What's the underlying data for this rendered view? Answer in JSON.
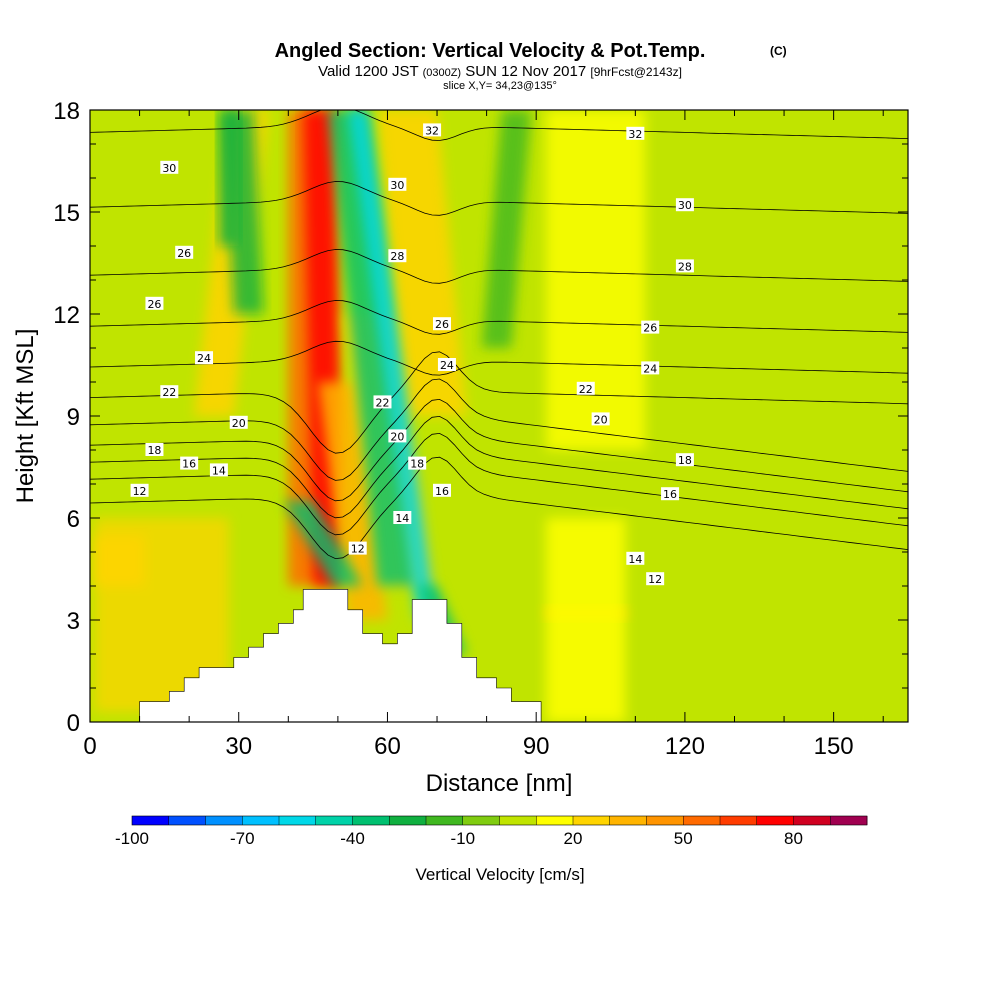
{
  "chart_data": {
    "type": "heatmap",
    "title": "Angled Section: Vertical Velocity & Pot.Temp.",
    "title_mark": "(C)",
    "subtitle": {
      "prefix": "Valid 1200 JST",
      "utc": "(0300Z)",
      "date": "SUN 12 Nov 2017",
      "run": "[9hrFcst@2143z]"
    },
    "slice_text": "slice X,Y= 34,23@135°",
    "xlabel": "Distance [nm]",
    "ylabel": "Height [Kft MSL]",
    "xlim": [
      0,
      165
    ],
    "ylim": [
      0,
      18
    ],
    "x_ticks": [
      {
        "value": 0,
        "label": "0"
      },
      {
        "value": 30,
        "label": "30"
      },
      {
        "value": 60,
        "label": "60"
      },
      {
        "value": 90,
        "label": "90"
      },
      {
        "value": 120,
        "label": "120"
      },
      {
        "value": 150,
        "label": "150"
      }
    ],
    "y_ticks": [
      {
        "value": 0,
        "label": "0"
      },
      {
        "value": 3,
        "label": "3"
      },
      {
        "value": 6,
        "label": "6"
      },
      {
        "value": 9,
        "label": "9"
      },
      {
        "value": 12,
        "label": "12"
      },
      {
        "value": 15,
        "label": "15"
      },
      {
        "value": 18,
        "label": "18"
      }
    ],
    "colorbar": {
      "label": "Vertical Velocity [cm/s]",
      "min": -100,
      "max": 100,
      "step": 10,
      "colors": [
        "#0000ff",
        "#0050ff",
        "#0090ff",
        "#00c0ff",
        "#00d8e8",
        "#00d2a8",
        "#00c070",
        "#10b040",
        "#40b820",
        "#80cc10",
        "#c0e400",
        "#ffff00",
        "#ffd400",
        "#ffb400",
        "#ff9400",
        "#ff6a00",
        "#ff3c00",
        "#ff0000",
        "#d00020",
        "#a00050",
        "#700080"
      ],
      "labels": [
        {
          "value": -100,
          "label": "-100"
        },
        {
          "value": -70,
          "label": "-70"
        },
        {
          "value": -40,
          "label": "-40"
        },
        {
          "value": -10,
          "label": "-10"
        },
        {
          "value": 20,
          "label": "20"
        },
        {
          "value": 50,
          "label": "50"
        },
        {
          "value": 80,
          "label": "80"
        }
      ]
    },
    "terrain": [
      [
        0,
        0
      ],
      [
        10,
        0
      ],
      [
        10,
        0.6
      ],
      [
        16,
        0.6
      ],
      [
        16,
        0.9
      ],
      [
        19,
        0.9
      ],
      [
        19,
        1.3
      ],
      [
        22,
        1.3
      ],
      [
        22,
        1.6
      ],
      [
        29,
        1.6
      ],
      [
        29,
        1.9
      ],
      [
        32,
        1.9
      ],
      [
        32,
        2.2
      ],
      [
        35,
        2.2
      ],
      [
        35,
        2.6
      ],
      [
        38,
        2.6
      ],
      [
        38,
        2.9
      ],
      [
        41,
        2.9
      ],
      [
        41,
        3.3
      ],
      [
        43,
        3.3
      ],
      [
        43,
        3.9
      ],
      [
        48,
        3.9
      ],
      [
        48,
        3.9
      ],
      [
        52,
        3.9
      ],
      [
        52,
        3.3
      ],
      [
        55,
        3.3
      ],
      [
        55,
        2.6
      ],
      [
        59,
        2.6
      ],
      [
        59,
        2.3
      ],
      [
        62,
        2.3
      ],
      [
        62,
        2.6
      ],
      [
        65,
        2.6
      ],
      [
        65,
        3.6
      ],
      [
        72,
        3.6
      ],
      [
        72,
        2.9
      ],
      [
        75,
        2.9
      ],
      [
        75,
        1.9
      ],
      [
        78,
        1.9
      ],
      [
        78,
        1.3
      ],
      [
        82,
        1.3
      ],
      [
        82,
        1.0
      ],
      [
        85,
        1.0
      ],
      [
        85,
        0.6
      ],
      [
        91,
        0.6
      ],
      [
        91,
        0
      ]
    ],
    "theta_contours": [
      {
        "label": "12",
        "base": 6.6
      },
      {
        "label": "14",
        "base": 7.3
      },
      {
        "label": "16",
        "base": 7.8
      },
      {
        "label": "18",
        "base": 8.3
      },
      {
        "label": "20",
        "base": 8.9
      },
      {
        "label": "22",
        "base": 9.7
      },
      {
        "label": "24",
        "base": 10.6
      },
      {
        "label": "26",
        "base": 11.8
      },
      {
        "label": "28",
        "base": 13.3
      },
      {
        "label": "30",
        "base": 15.3
      },
      {
        "label": "32",
        "base": 17.5
      }
    ],
    "contour_labels": [
      {
        "label": "12",
        "x": 10,
        "y": 6.8
      },
      {
        "label": "16",
        "x": 20,
        "y": 7.6
      },
      {
        "label": "14",
        "x": 26,
        "y": 7.4
      },
      {
        "label": "18",
        "x": 13,
        "y": 8.0
      },
      {
        "label": "20",
        "x": 30,
        "y": 8.8
      },
      {
        "label": "22",
        "x": 16,
        "y": 9.7
      },
      {
        "label": "24",
        "x": 23,
        "y": 10.7
      },
      {
        "label": "26",
        "x": 13,
        "y": 12.3
      },
      {
        "label": "26",
        "x": 19,
        "y": 13.8
      },
      {
        "label": "30",
        "x": 16,
        "y": 16.3
      },
      {
        "label": "12",
        "x": 54,
        "y": 5.1
      },
      {
        "label": "14",
        "x": 63,
        "y": 6.0
      },
      {
        "label": "16",
        "x": 71,
        "y": 6.8
      },
      {
        "label": "18",
        "x": 66,
        "y": 7.6
      },
      {
        "label": "20",
        "x": 62,
        "y": 8.4
      },
      {
        "label": "22",
        "x": 59,
        "y": 9.4
      },
      {
        "label": "24",
        "x": 72,
        "y": 10.5
      },
      {
        "label": "26",
        "x": 71,
        "y": 11.7
      },
      {
        "label": "28",
        "x": 62,
        "y": 13.7
      },
      {
        "label": "30",
        "x": 62,
        "y": 15.8
      },
      {
        "label": "32",
        "x": 69,
        "y": 17.4
      },
      {
        "label": "14",
        "x": 110,
        "y": 4.8
      },
      {
        "label": "12",
        "x": 114,
        "y": 4.2
      },
      {
        "label": "16",
        "x": 117,
        "y": 6.7
      },
      {
        "label": "18",
        "x": 120,
        "y": 7.7
      },
      {
        "label": "20",
        "x": 103,
        "y": 8.9
      },
      {
        "label": "22",
        "x": 100,
        "y": 9.8
      },
      {
        "label": "24",
        "x": 113,
        "y": 10.4
      },
      {
        "label": "26",
        "x": 113,
        "y": 11.6
      },
      {
        "label": "28",
        "x": 120,
        "y": 13.4
      },
      {
        "label": "30",
        "x": 120,
        "y": 15.2
      },
      {
        "label": "32",
        "x": 110,
        "y": 17.3
      }
    ],
    "updraft_bands": [
      {
        "x": 45,
        "y": 4,
        "xtop": 45,
        "ytop": 18,
        "width": 5,
        "value": 55
      },
      {
        "x": 48,
        "y": 4,
        "xtop": 46,
        "ytop": 18,
        "width": 3,
        "value": 70
      },
      {
        "x": 56,
        "y": 3,
        "xtop": 50,
        "ytop": 10,
        "width": 4,
        "value": 30
      },
      {
        "x": 64,
        "y": 4,
        "xtop": 56,
        "ytop": 12,
        "width": 5,
        "value": 25
      },
      {
        "x": 70,
        "y": 9,
        "xtop": 64,
        "ytop": 18,
        "width": 6,
        "value": 25
      },
      {
        "x": 25,
        "y": 9,
        "xtop": 32,
        "ytop": 18,
        "width": 4,
        "value": 25
      },
      {
        "x": 6,
        "y": 4,
        "xtop": 6,
        "ytop": 5.5,
        "width": 5,
        "value": 25
      },
      {
        "x": 100,
        "y": 3,
        "xtop": 100,
        "ytop": 3.4,
        "width": 8,
        "value": 25
      }
    ],
    "downdraft_bands": [
      {
        "x": 42,
        "y": 6.5,
        "xtop": 52,
        "ytop": 4,
        "width": 3,
        "value": -35
      },
      {
        "x": 52,
        "y": 18,
        "xtop": 62,
        "ytop": 4,
        "width": 4,
        "value": -35
      },
      {
        "x": 54,
        "y": 18,
        "xtop": 68,
        "ytop": 3,
        "width": 2,
        "value": -55
      },
      {
        "x": 68,
        "y": 4,
        "xtop": 74,
        "ytop": 2,
        "width": 2,
        "value": -40
      },
      {
        "x": 30,
        "y": 18,
        "xtop": 32,
        "ytop": 12,
        "width": 3,
        "value": -25
      },
      {
        "x": 28,
        "y": 18,
        "xtop": 28,
        "ytop": 14,
        "width": 2,
        "value": -30
      },
      {
        "x": 86,
        "y": 18,
        "xtop": 82,
        "ytop": 11,
        "width": 3,
        "value": -15
      }
    ]
  }
}
